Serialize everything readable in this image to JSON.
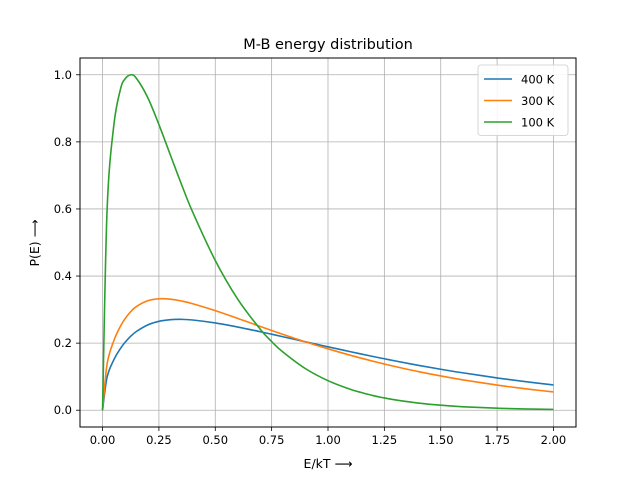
{
  "chart_data": {
    "type": "line",
    "title": "M-B energy distribution",
    "xlabel": "E/kT  ⟶",
    "ylabel": "P(E)  ⟶",
    "xlim": [
      -0.1,
      2.1
    ],
    "ylim": [
      -0.05,
      1.05
    ],
    "xticks": [
      0.0,
      0.25,
      0.5,
      0.75,
      1.0,
      1.25,
      1.5,
      1.75,
      2.0
    ],
    "xtick_labels": [
      "0.00",
      "0.25",
      "0.50",
      "0.75",
      "1.00",
      "1.25",
      "1.50",
      "1.75",
      "2.00"
    ],
    "yticks": [
      0.0,
      0.2,
      0.4,
      0.6,
      0.8,
      1.0
    ],
    "ytick_labels": [
      "0.0",
      "0.2",
      "0.4",
      "0.6",
      "0.8",
      "1.0"
    ],
    "grid": true,
    "legend": "top-right",
    "x": [
      0.0,
      0.02,
      0.05,
      0.08,
      0.1,
      0.125,
      0.15,
      0.2,
      0.25,
      0.3,
      0.35,
      0.4,
      0.5,
      0.6,
      0.7,
      0.75,
      0.8,
      0.9,
      1.0,
      1.1,
      1.2,
      1.25,
      1.3,
      1.4,
      1.5,
      1.6,
      1.75,
      1.8,
      1.9,
      2.0
    ],
    "series": [
      {
        "name": "400 K",
        "color": "#1f77b4",
        "values": [
          0.0,
          0.098,
          0.1503,
          0.1847,
          0.2024,
          0.2206,
          0.2347,
          0.2541,
          0.265,
          0.27,
          0.2709,
          0.269,
          0.2602,
          0.248,
          0.234,
          0.2266,
          0.219,
          0.204,
          0.189,
          0.1744,
          0.1602,
          0.1534,
          0.1467,
          0.134,
          0.1222,
          0.1113,
          0.0963,
          0.0918,
          0.0832,
          0.0753
        ]
      },
      {
        "name": "300 K",
        "color": "#ff7f0e",
        "values": [
          0.0,
          0.137,
          0.2072,
          0.2512,
          0.2729,
          0.2939,
          0.309,
          0.3262,
          0.3322,
          0.331,
          0.3256,
          0.3175,
          0.297,
          0.2736,
          0.2496,
          0.2378,
          0.2262,
          0.2039,
          0.1831,
          0.1637,
          0.146,
          0.1377,
          0.1299,
          0.1153,
          0.1022,
          0.0904,
          0.075,
          0.0704,
          0.062,
          0.0545
        ]
      },
      {
        "name": "100 K",
        "color": "#2ca02c",
        "values": [
          0.0,
          0.5942,
          0.8494,
          0.958,
          0.9878,
          1.0,
          0.9896,
          0.9327,
          0.8516,
          0.7624,
          0.6737,
          0.5903,
          0.4464,
          0.3306,
          0.2411,
          0.2046,
          0.1736,
          0.124,
          0.0881,
          0.0623,
          0.0437,
          0.0366,
          0.0306,
          0.0214,
          0.0149,
          0.0103,
          0.006,
          0.005,
          0.0034,
          0.0023
        ]
      }
    ]
  }
}
